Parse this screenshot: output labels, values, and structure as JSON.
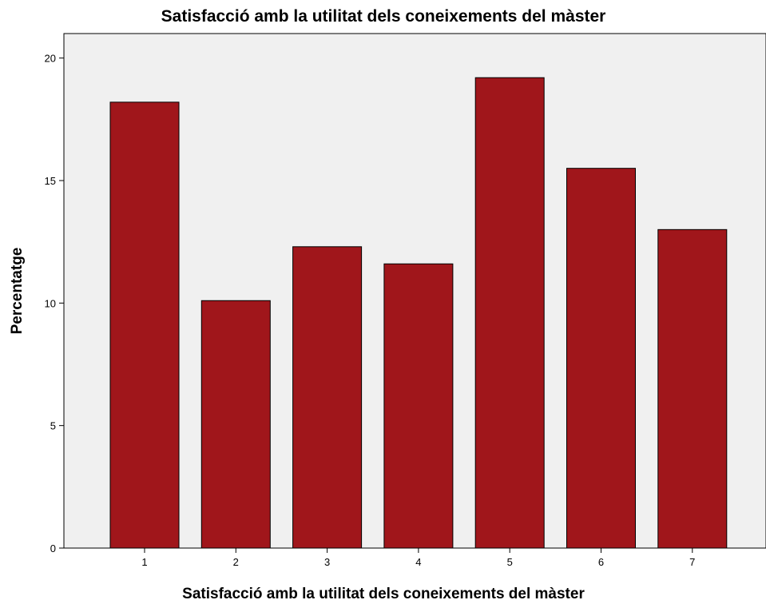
{
  "chart_data": {
    "type": "bar",
    "title": "Satisfacció amb la utilitat dels coneixements del màster",
    "xlabel": "Satisfacció amb la utilitat dels coneixements del màster",
    "ylabel": "Percentatge",
    "categories": [
      "1",
      "2",
      "3",
      "4",
      "5",
      "6",
      "7"
    ],
    "values": [
      18.2,
      10.1,
      12.3,
      11.6,
      19.2,
      15.5,
      13.0
    ],
    "ylim": [
      0,
      21
    ],
    "yticks": [
      0,
      5,
      10,
      15,
      20
    ],
    "grid": false,
    "legend": "none",
    "bar_color": "#a0161b",
    "plot_background": "#f0f0f0"
  }
}
